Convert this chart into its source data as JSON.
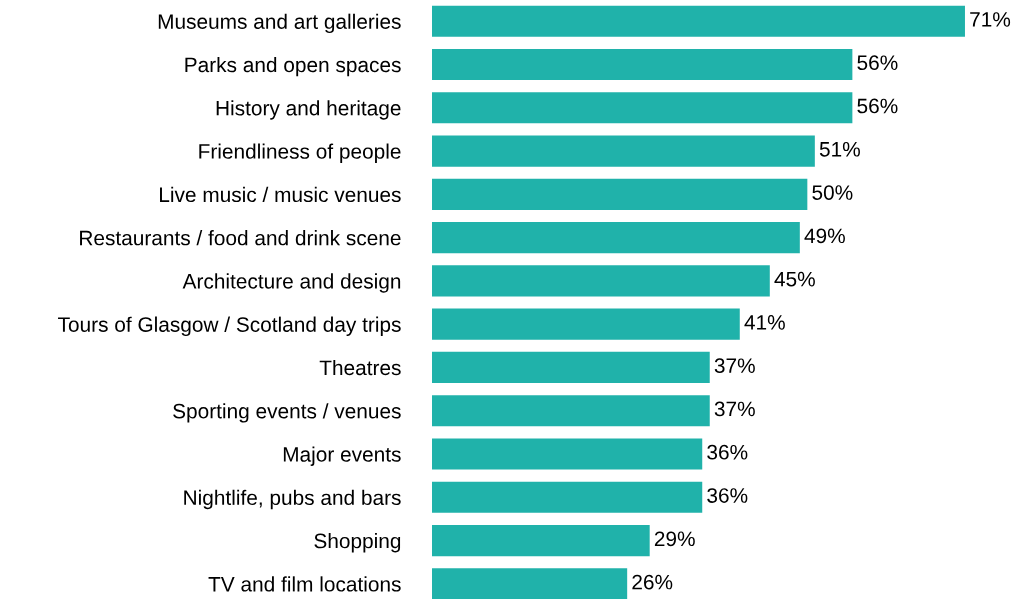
{
  "chart_data": {
    "type": "bar",
    "orientation": "horizontal",
    "categories": [
      "Museums and art galleries",
      "Parks and open spaces",
      "History and heritage",
      "Friendliness of people",
      "Live music / music venues",
      "Restaurants / food and drink scene",
      "Architecture and design",
      "Tours of Glasgow / Scotland day trips",
      "Theatres",
      "Sporting events / venues",
      "Major events",
      "Nightlife, pubs and bars",
      "Shopping",
      "TV and film locations"
    ],
    "values": [
      71,
      56,
      56,
      51,
      50,
      49,
      45,
      41,
      37,
      37,
      36,
      36,
      29,
      26
    ],
    "value_labels": [
      "71%",
      "56%",
      "56%",
      "51%",
      "50%",
      "49%",
      "45%",
      "41%",
      "37%",
      "37%",
      "36%",
      "36%",
      "29%",
      "26%"
    ],
    "color": "#20b2aa",
    "grid": false,
    "legend": false
  }
}
